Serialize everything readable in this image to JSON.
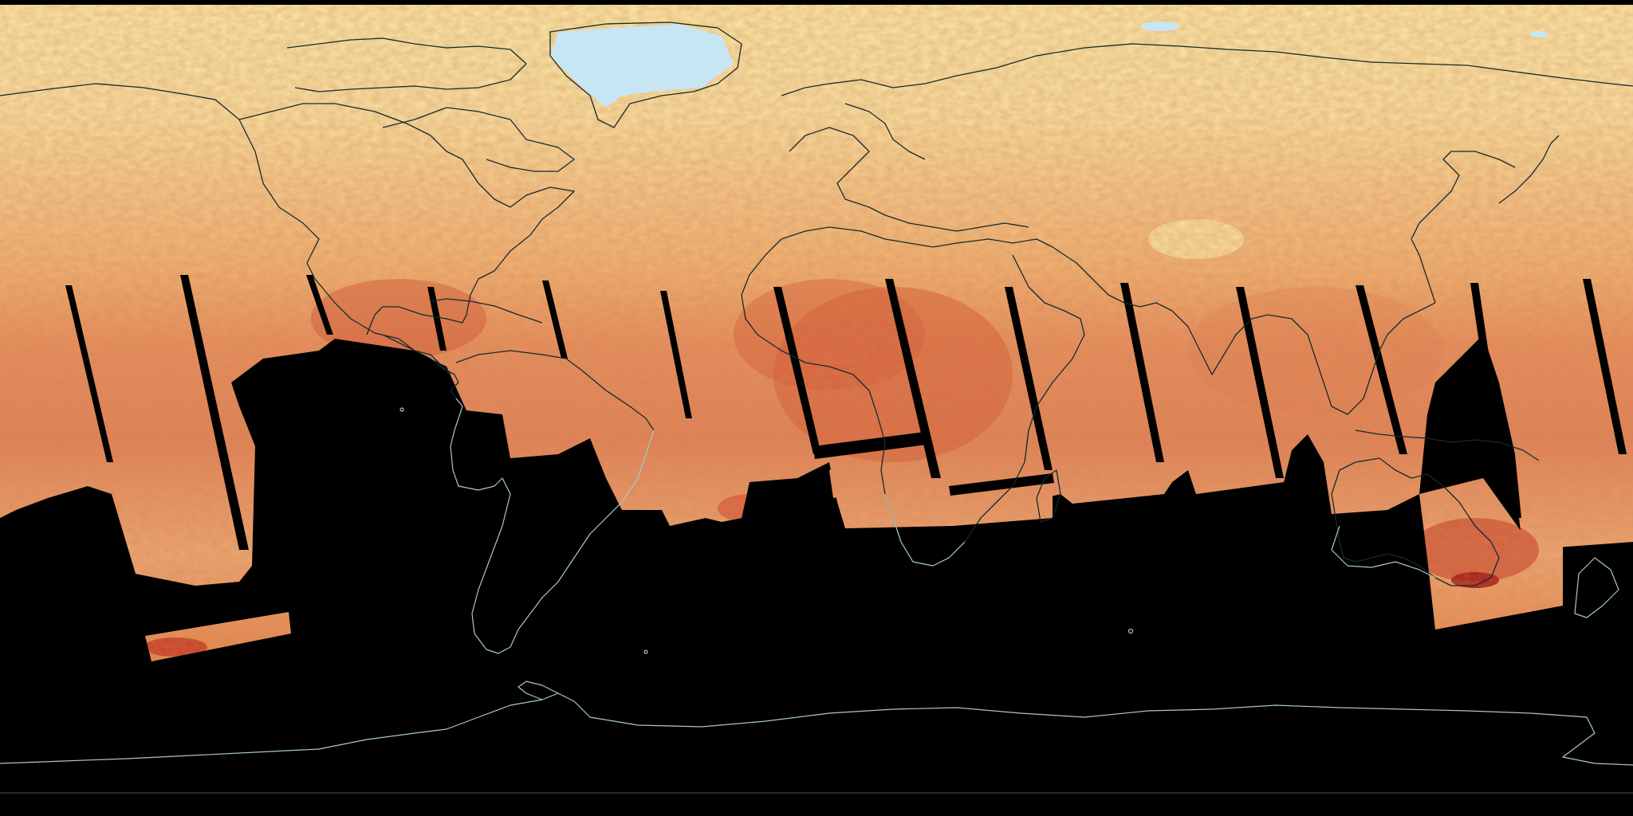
{
  "map": {
    "projection": "equirectangular",
    "base_color": "#000000",
    "palette": [
      "#c6e6f4",
      "#fbeaa8",
      "#f8cf88",
      "#f1a56a",
      "#e27650",
      "#cc3d28",
      "#a40f0f"
    ],
    "has_legend": false,
    "has_labels": false,
    "features": [
      "land-coastlines",
      "ice-sheets",
      "satellite-swath-gaps"
    ]
  }
}
